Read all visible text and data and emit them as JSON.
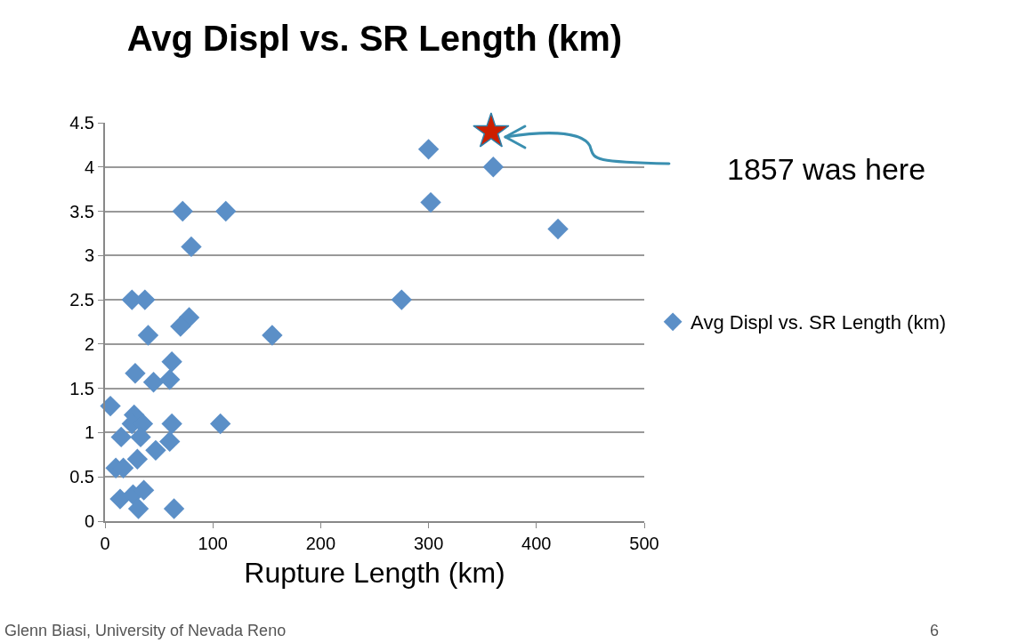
{
  "chart_data": {
    "type": "scatter",
    "title": "Avg Displ vs. SR Length (km)",
    "xlabel": "Rupture Length (km)",
    "x": [
      300,
      360,
      302,
      420,
      275,
      155,
      72,
      112,
      80,
      25,
      37,
      78,
      70,
      40,
      62,
      28,
      45,
      60,
      5,
      27,
      25,
      35,
      62,
      107,
      15,
      33,
      60,
      47,
      30,
      10,
      17,
      14,
      26,
      36,
      31,
      64
    ],
    "series": [
      {
        "name": "Avg Displ vs. SR Length (km)",
        "color": "#5b8fc7",
        "marker": "diamond",
        "values": [
          4.2,
          4.0,
          3.6,
          3.3,
          2.5,
          2.1,
          3.5,
          3.5,
          3.1,
          2.5,
          2.5,
          2.3,
          2.2,
          2.1,
          1.8,
          1.67,
          1.57,
          1.6,
          1.3,
          1.2,
          1.1,
          1.1,
          1.1,
          1.1,
          0.95,
          0.95,
          0.9,
          0.8,
          0.7,
          0.6,
          0.6,
          0.25,
          0.3,
          0.35,
          0.14,
          0.14
        ]
      },
      {
        "color": "#cc1f00",
        "marker": "star",
        "x": [
          358
        ],
        "values": [
          4.4
        ]
      }
    ],
    "annotations": [
      "1857 was here",
      "Glenn Biasi, University of Nevada Reno",
      "6"
    ],
    "xlim": [
      0,
      500
    ],
    "xticks": [
      0,
      100,
      200,
      300,
      400,
      500
    ],
    "ylim": [
      0,
      4.5
    ],
    "yticks": [
      0,
      0.5,
      1,
      1.5,
      2,
      2.5,
      3,
      3.5,
      4,
      4.5
    ],
    "grid": "y",
    "legend": "right"
  }
}
